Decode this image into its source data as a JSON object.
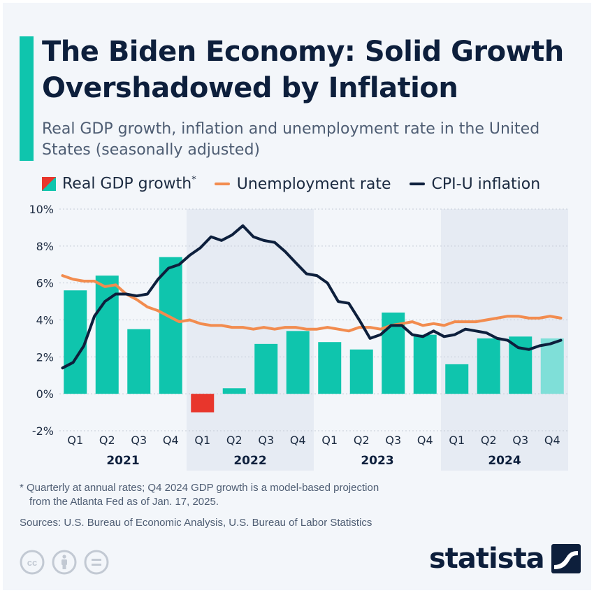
{
  "header": {
    "title": "The Biden Economy: Solid Growth Overshadowed by Inflation",
    "subtitle": "Real GDP growth, inflation and unemployment rate in the United States (seasonally adjusted)"
  },
  "legend": {
    "gdp_label": "Real GDP growth",
    "gdp_marker": "*",
    "unemployment_label": "Unemployment rate",
    "cpi_label": "CPI-U inflation"
  },
  "colors": {
    "gdp_positive": "#0fc5ad",
    "gdp_negative": "#e8362c",
    "gdp_projection": "#7fdfd8",
    "unemployment": "#f28c4f",
    "cpi": "#0d1f3c",
    "accent": "#0fc5ad"
  },
  "chart_data": {
    "type": "bar",
    "categories": [
      "Q1",
      "Q2",
      "Q3",
      "Q4",
      "Q1",
      "Q2",
      "Q3",
      "Q4",
      "Q1",
      "Q2",
      "Q3",
      "Q4",
      "Q1",
      "Q2",
      "Q3",
      "Q4"
    ],
    "years": [
      "2021",
      "2022",
      "2023",
      "2024"
    ],
    "y_tick_labels": [
      "10%",
      "8%",
      "6%",
      "4%",
      "2%",
      "0%",
      "-2%"
    ],
    "ylim": [
      -2,
      10
    ],
    "grid": "horizontal dashed",
    "shaded_years": [
      "2022",
      "2024"
    ],
    "series": [
      {
        "name": "Real GDP growth",
        "kind": "bar",
        "values": [
          5.6,
          6.4,
          3.5,
          7.4,
          -1.0,
          0.3,
          2.7,
          3.4,
          2.8,
          2.4,
          4.4,
          3.2,
          1.6,
          3.0,
          3.1,
          3.0
        ],
        "projected": [
          false,
          false,
          false,
          false,
          false,
          false,
          false,
          false,
          false,
          false,
          false,
          false,
          false,
          false,
          false,
          true
        ]
      },
      {
        "name": "Unemployment rate",
        "kind": "line",
        "x": [
          0.0,
          0.33,
          0.67,
          1.0,
          1.33,
          1.67,
          2.0,
          2.33,
          2.67,
          3.0,
          3.33,
          3.67,
          4.0,
          4.33,
          4.67,
          5.0,
          5.33,
          5.67,
          6.0,
          6.33,
          6.67,
          7.0,
          7.33,
          7.67,
          8.0,
          8.33,
          8.67,
          9.0,
          9.33,
          9.67,
          10.0,
          10.33,
          10.67,
          11.0,
          11.33,
          11.67,
          12.0,
          12.33,
          12.67,
          13.0,
          13.33,
          13.67,
          14.0,
          14.33,
          14.67,
          15.0,
          15.33,
          15.67
        ],
        "values": [
          6.4,
          6.2,
          6.1,
          6.1,
          5.8,
          5.9,
          5.4,
          5.1,
          4.7,
          4.5,
          4.2,
          3.9,
          4.0,
          3.8,
          3.7,
          3.7,
          3.6,
          3.6,
          3.5,
          3.6,
          3.5,
          3.6,
          3.6,
          3.5,
          3.5,
          3.6,
          3.5,
          3.4,
          3.6,
          3.6,
          3.5,
          3.7,
          3.8,
          3.9,
          3.7,
          3.8,
          3.7,
          3.9,
          3.9,
          3.9,
          4.0,
          4.1,
          4.2,
          4.2,
          4.1,
          4.1,
          4.2,
          4.1
        ]
      },
      {
        "name": "CPI-U inflation",
        "kind": "line",
        "x": [
          0.0,
          0.33,
          0.67,
          1.0,
          1.33,
          1.67,
          2.0,
          2.33,
          2.67,
          3.0,
          3.33,
          3.67,
          4.0,
          4.33,
          4.67,
          5.0,
          5.33,
          5.67,
          6.0,
          6.33,
          6.67,
          7.0,
          7.33,
          7.67,
          8.0,
          8.33,
          8.67,
          9.0,
          9.33,
          9.67,
          10.0,
          10.33,
          10.67,
          11.0,
          11.33,
          11.67,
          12.0,
          12.33,
          12.67,
          13.0,
          13.33,
          13.67,
          14.0,
          14.33,
          14.67,
          15.0,
          15.33,
          15.67
        ],
        "values": [
          1.4,
          1.7,
          2.6,
          4.2,
          5.0,
          5.4,
          5.4,
          5.3,
          5.4,
          6.2,
          6.8,
          7.0,
          7.5,
          7.9,
          8.5,
          8.3,
          8.6,
          9.1,
          8.5,
          8.3,
          8.2,
          7.7,
          7.1,
          6.5,
          6.4,
          6.0,
          5.0,
          4.9,
          4.0,
          3.0,
          3.2,
          3.7,
          3.7,
          3.2,
          3.1,
          3.4,
          3.1,
          3.2,
          3.5,
          3.4,
          3.3,
          3.0,
          2.9,
          2.5,
          2.4,
          2.6,
          2.7,
          2.9
        ]
      }
    ]
  },
  "footer": {
    "footnote_line1": "* Quarterly at annual rates; Q4 2024 GDP growth is a model-based projection",
    "footnote_line2": "from the Atlanta Fed as of Jan. 17, 2025.",
    "sources": "Sources: U.S. Bureau of Economic Analysis, U.S. Bureau of Labor Statistics",
    "brand": "statista"
  },
  "icons": {
    "license": [
      "cc-icon",
      "attribution-icon",
      "no-derivatives-icon"
    ],
    "brand_mark": "statista-logo-icon"
  }
}
